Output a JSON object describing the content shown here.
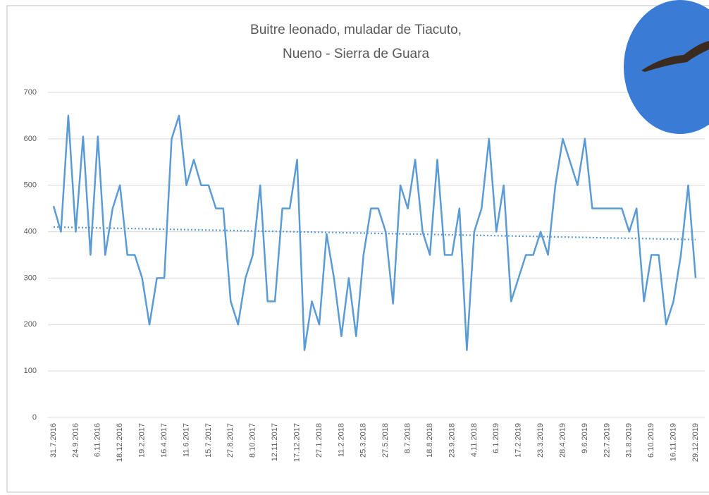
{
  "chart_data": {
    "type": "line",
    "title": [
      "Buitre leonado, muladar de Tiacuto,",
      "Nueno - Sierra de Guara"
    ],
    "categories": [
      "31.7.2016",
      null,
      null,
      "24.9.2016",
      null,
      null,
      "6.11.2016",
      null,
      null,
      "18.12.2016",
      null,
      null,
      "19.2.2017",
      null,
      null,
      "16.4.2017",
      null,
      null,
      "11.6.2017",
      null,
      null,
      "15.7.2017",
      null,
      null,
      "27.8.2017",
      null,
      null,
      "8.10.2017",
      null,
      null,
      "12.11.2017",
      null,
      null,
      "17.12.2017",
      null,
      null,
      "27.1.2018",
      null,
      null,
      "11.2.2018",
      null,
      null,
      "25.3.2018",
      null,
      null,
      "27.5.2018",
      null,
      null,
      "8.7.2018",
      null,
      null,
      "18.8.2018",
      null,
      null,
      "23.9.2018",
      null,
      null,
      "4.11.2018",
      null,
      null,
      "6.1.2019",
      null,
      null,
      "17.2.2019",
      null,
      null,
      "23.3.2019",
      null,
      null,
      "28.4.2019",
      null,
      null,
      "9.6.2019",
      null,
      null,
      "22.7.2019",
      null,
      null,
      "31.8.2019",
      null,
      null,
      "6.10.2019",
      null,
      null,
      "16.11.2019",
      null,
      null,
      "29.12.2019"
    ],
    "series": [
      {
        "color": "#5b9bd5",
        "values": [
          455,
          400,
          650,
          400,
          605,
          350,
          605,
          350,
          450,
          500,
          350,
          350,
          300,
          200,
          300,
          300,
          600,
          650,
          500,
          555,
          500,
          500,
          450,
          450,
          250,
          200,
          300,
          350,
          500,
          250,
          250,
          450,
          450,
          555,
          145,
          250,
          200,
          395,
          300,
          175,
          300,
          175,
          350,
          450,
          450,
          400,
          245,
          500,
          450,
          555,
          400,
          350,
          555,
          350,
          350,
          450,
          145,
          400,
          450,
          600,
          400,
          500,
          250,
          300,
          350,
          350,
          400,
          350,
          500,
          600,
          550,
          500,
          600,
          450,
          450,
          450,
          450,
          450,
          400,
          450,
          250,
          350,
          350,
          200,
          250,
          350,
          500,
          300
        ]
      }
    ],
    "trendline": {
      "start": 410,
      "end": 383,
      "color": "#5b9bd5"
    },
    "ylim": [
      0,
      700
    ],
    "yticks": [
      0,
      100,
      200,
      300,
      400,
      500,
      600,
      700
    ],
    "grid": true
  }
}
